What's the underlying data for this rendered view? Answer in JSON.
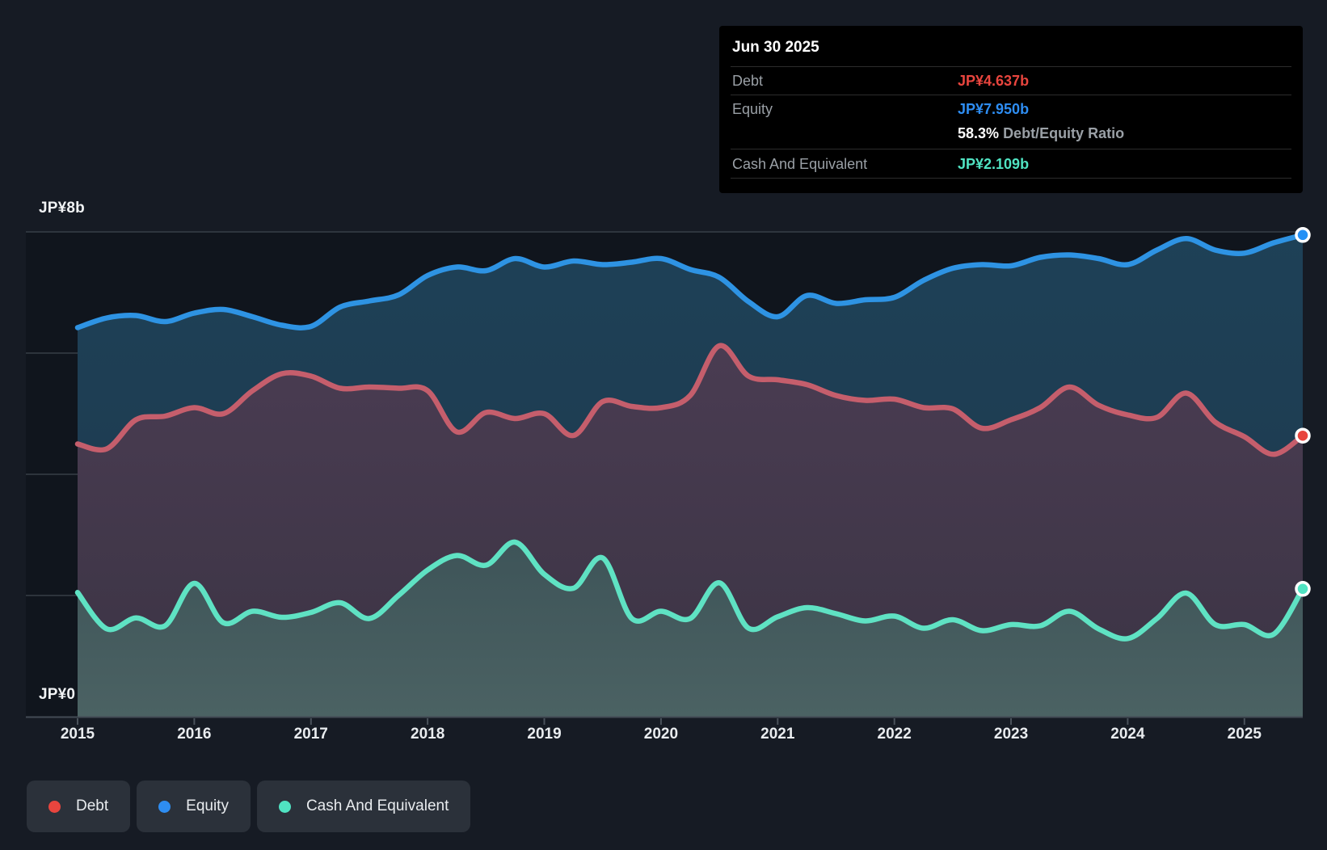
{
  "tooltip": {
    "date": "Jun 30 2025",
    "debt_label": "Debt",
    "debt_value": "JP¥4.637b",
    "equity_label": "Equity",
    "equity_value": "JP¥7.950b",
    "ratio_value": "58.3%",
    "ratio_label": "Debt/Equity Ratio",
    "cash_label": "Cash And Equivalent",
    "cash_value": "JP¥2.109b"
  },
  "axis": {
    "y_top_label": "JP¥8b",
    "y_bottom_label": "JP¥0",
    "x_labels": [
      "2015",
      "2016",
      "2017",
      "2018",
      "2019",
      "2020",
      "2021",
      "2022",
      "2023",
      "2024",
      "2025"
    ]
  },
  "legend": {
    "items": [
      {
        "label": "Debt",
        "color": "#e8453e"
      },
      {
        "label": "Equity",
        "color": "#2e8df2"
      },
      {
        "label": "Cash And Equivalent",
        "color": "#50e3c2"
      }
    ]
  },
  "colors": {
    "page_bg": "#161b24",
    "plot_bg": "#10151d",
    "grid": "#373e47",
    "axis_line": "#434b55",
    "tick": "#4a525b",
    "tooltip_bg": "#000000",
    "debt_line": "#c55e6c",
    "equity_line": "#2e93e3",
    "cash_line": "#5fe2c3",
    "debt_accent": "#e8453e",
    "equity_accent": "#2490f5",
    "cash_accent": "#50e3c2"
  },
  "chart_data": {
    "type": "area",
    "title": "Debt to Equity History and Analysis",
    "x_unit": "year (quarterly samples)",
    "x_range": [
      2015.0,
      2025.5
    ],
    "ylim": [
      0,
      8
    ],
    "y_gridline_values": [
      2,
      4,
      6,
      8
    ],
    "legend_position": "bottom",
    "last_point_date": "Jun 30 2025",
    "x": [
      2015.0,
      2015.25,
      2015.5,
      2015.75,
      2016.0,
      2016.25,
      2016.5,
      2016.75,
      2017.0,
      2017.25,
      2017.5,
      2017.75,
      2018.0,
      2018.25,
      2018.5,
      2018.75,
      2019.0,
      2019.25,
      2019.5,
      2019.75,
      2020.0,
      2020.25,
      2020.5,
      2020.75,
      2021.0,
      2021.25,
      2021.5,
      2021.75,
      2022.0,
      2022.25,
      2022.5,
      2022.75,
      2023.0,
      2023.25,
      2023.5,
      2023.75,
      2024.0,
      2024.25,
      2024.5,
      2024.75,
      2025.0,
      2025.25,
      2025.5
    ],
    "series": [
      {
        "name": "Equity",
        "unit": "JP¥ billions",
        "final_value": 7.95,
        "values": [
          6.42,
          6.58,
          6.62,
          6.52,
          6.66,
          6.72,
          6.6,
          6.46,
          6.44,
          6.76,
          6.86,
          6.96,
          7.28,
          7.42,
          7.36,
          7.56,
          7.42,
          7.52,
          7.46,
          7.5,
          7.56,
          7.38,
          7.25,
          6.85,
          6.6,
          6.95,
          6.82,
          6.88,
          6.92,
          7.2,
          7.4,
          7.46,
          7.44,
          7.58,
          7.62,
          7.56,
          7.46,
          7.7,
          7.89,
          7.7,
          7.65,
          7.82,
          7.95
        ]
      },
      {
        "name": "Debt",
        "unit": "JP¥ billions",
        "final_value": 4.637,
        "values": [
          4.5,
          4.42,
          4.9,
          4.96,
          5.1,
          5.0,
          5.38,
          5.66,
          5.62,
          5.42,
          5.44,
          5.42,
          5.38,
          4.7,
          5.02,
          4.92,
          5.0,
          4.64,
          5.2,
          5.12,
          5.1,
          5.3,
          6.12,
          5.62,
          5.56,
          5.48,
          5.3,
          5.22,
          5.24,
          5.1,
          5.08,
          4.76,
          4.9,
          5.1,
          5.44,
          5.14,
          4.98,
          4.94,
          5.34,
          4.86,
          4.62,
          4.33,
          4.637
        ]
      },
      {
        "name": "Cash And Equivalent",
        "unit": "JP¥ billions",
        "final_value": 2.109,
        "values": [
          2.05,
          1.45,
          1.63,
          1.5,
          2.2,
          1.55,
          1.74,
          1.64,
          1.72,
          1.88,
          1.62,
          2.0,
          2.42,
          2.66,
          2.5,
          2.88,
          2.35,
          2.12,
          2.62,
          1.62,
          1.74,
          1.62,
          2.21,
          1.46,
          1.65,
          1.8,
          1.7,
          1.58,
          1.66,
          1.46,
          1.6,
          1.42,
          1.52,
          1.5,
          1.74,
          1.45,
          1.29,
          1.62,
          2.04,
          1.52,
          1.52,
          1.36,
          2.109
        ]
      }
    ]
  }
}
